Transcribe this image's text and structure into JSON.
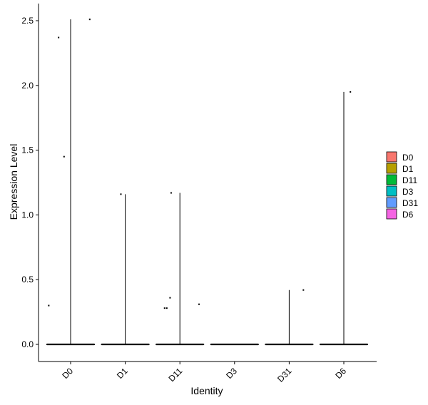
{
  "chart_data": {
    "type": "violin",
    "title": "",
    "xlabel": "Identity",
    "ylabel": "Expression Level",
    "ylim": [
      -0.13,
      2.6
    ],
    "yticks": [
      0.0,
      0.5,
      1.0,
      1.5,
      2.0,
      2.5
    ],
    "ytick_labels": [
      "0.0",
      "0.5",
      "1.0",
      "1.5",
      "2.0",
      "2.5"
    ],
    "grid": false,
    "legend_position": "right",
    "categories": [
      "D0",
      "D1",
      "D11",
      "D3",
      "D31",
      "D6"
    ],
    "legend_entries": [
      {
        "label": "D0",
        "color": "#F8766D"
      },
      {
        "label": "D1",
        "color": "#B79F00"
      },
      {
        "label": "D11",
        "color": "#00BA38"
      },
      {
        "label": "D3",
        "color": "#00BFC4"
      },
      {
        "label": "D31",
        "color": "#619CFF"
      },
      {
        "label": "D6",
        "color": "#F564E3"
      }
    ],
    "series": [
      {
        "category": "D0",
        "max": 2.51,
        "outliers": [
          [
            -0.4,
            0.3
          ],
          [
            -0.22,
            2.37
          ],
          [
            -0.12,
            1.45
          ],
          [
            0.35,
            2.51
          ]
        ]
      },
      {
        "category": "D1",
        "max": 1.16,
        "outliers": [
          [
            -0.08,
            1.16
          ]
        ]
      },
      {
        "category": "D11",
        "max": 1.17,
        "outliers": [
          [
            -0.28,
            0.28
          ],
          [
            -0.24,
            0.28
          ],
          [
            -0.18,
            0.36
          ],
          [
            -0.16,
            1.17
          ],
          [
            0.35,
            0.31
          ]
        ]
      },
      {
        "category": "D3",
        "max": 0.0,
        "outliers": []
      },
      {
        "category": "D31",
        "max": 0.42,
        "outliers": [
          [
            0.26,
            0.42
          ]
        ]
      },
      {
        "category": "D6",
        "max": 1.95,
        "outliers": [
          [
            0.12,
            1.95
          ]
        ]
      }
    ]
  }
}
